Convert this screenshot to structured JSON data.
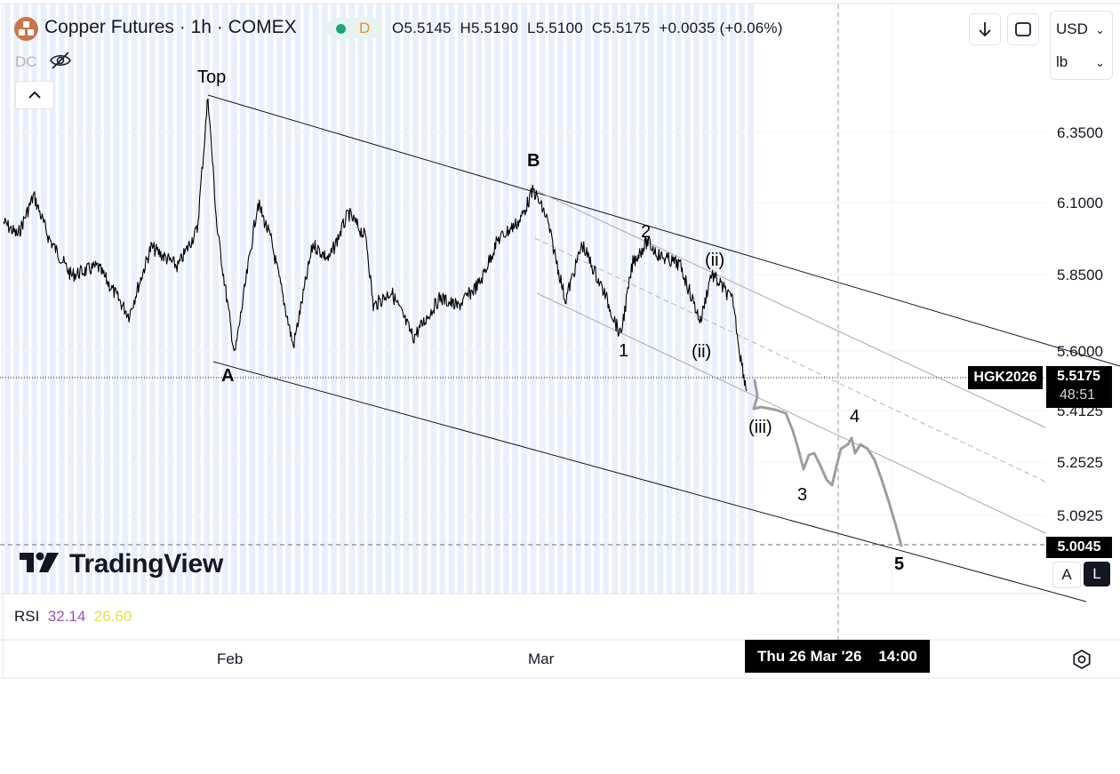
{
  "header": {
    "title": "Copper Futures · 1h · COMEX",
    "interval_badge": "D",
    "ohlc": {
      "open_label": "O",
      "open": "5.5145",
      "high_label": "H",
      "high": "5.5190",
      "low_label": "L",
      "low": "5.5100",
      "close_label": "C",
      "close": "5.5175",
      "change": "+0.0035 (+0.06%)"
    },
    "indicator_label": "DC"
  },
  "toolbar": {
    "currency": "USD",
    "unit": "lb"
  },
  "price_axis": {
    "ticks": [
      "6.3500",
      "6.1000",
      "5.8500",
      "5.6000",
      "5.4125",
      "5.2525",
      "5.0925"
    ]
  },
  "current_price": {
    "symbol": "HGK2026",
    "price": "5.5175",
    "countdown": "48:51"
  },
  "target_price": "5.0045",
  "wave_labels": {
    "top": "Top",
    "a": "A",
    "b": "B",
    "w1": "1",
    "w2": "2",
    "wii_upper": "(ii)",
    "wii_lower": "(ii)",
    "wiii": "(iii)",
    "w3": "3",
    "w4": "4",
    "w5": "5"
  },
  "watermark": "TradingView",
  "scale_buttons": {
    "auto": "A",
    "log": "L"
  },
  "rsi": {
    "label": "RSI",
    "value1": "32.14",
    "value2": "26.60",
    "color1": "#9c4ec0",
    "color2": "#e3e04c"
  },
  "time_axis": {
    "labels": [
      "Feb",
      "Mar"
    ],
    "crosshair_date": "Thu 26 Mar '26",
    "crosshair_time": "14:00"
  },
  "colors": {
    "session_shade": "#e8effd",
    "price_line": "#000000",
    "projection": "#9e9e9e",
    "logo": "#c9764b",
    "badge_green": "#1ea37a",
    "badge_orange": "#f08c1e"
  }
}
